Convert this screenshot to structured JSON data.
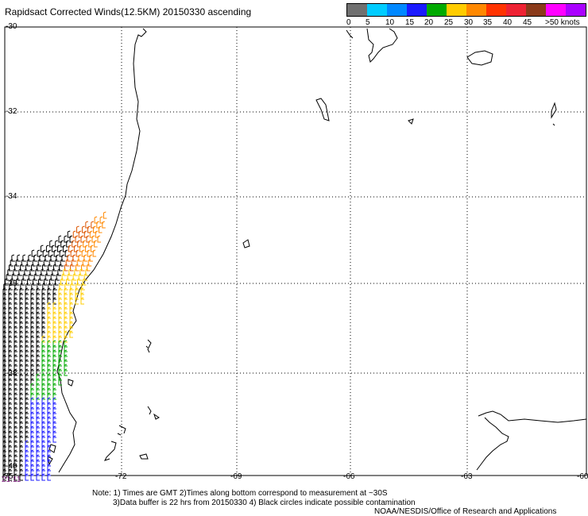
{
  "title": "Rapidsact Corrected Winds(12.5KM) 20150330 ascending",
  "color_scale": {
    "colors": [
      "#707070",
      "#00ccff",
      "#0088ff",
      "#1a1aff",
      "#00aa00",
      "#ffcc00",
      "#ff8800",
      "#ff3300",
      "#ee2233",
      "#8a3a1a",
      "#ff00ff",
      "#aa00ff"
    ],
    "labels": [
      "0",
      "5",
      "10",
      "15",
      "20",
      "25",
      "30",
      "35",
      "40",
      "45",
      ">50 knots"
    ]
  },
  "axes": {
    "lat_labels": [
      "-30",
      "-32",
      "-34",
      "-36",
      "-38",
      "-40"
    ],
    "lon_labels": [
      "-75",
      "-72",
      "-69",
      "-66",
      "-63",
      "-60"
    ]
  },
  "timestamp": "21:11",
  "notes": {
    "line1": "Note: 1) Times are GMT 2)Times along bottom correspond to measurement at ~30S",
    "line2": "3)Data buffer is 22 hrs from 20150330 4) Black circles indicate possible contamination",
    "line3": "NOAA/NESDIS/Office of Research and Applications"
  },
  "wind_colors": {
    "black": "#000000",
    "orange": "#ff8800",
    "darkorange": "#dd5500",
    "yellow": "#ffcc00",
    "green": "#00aa00",
    "blue": "#1a1aff"
  }
}
